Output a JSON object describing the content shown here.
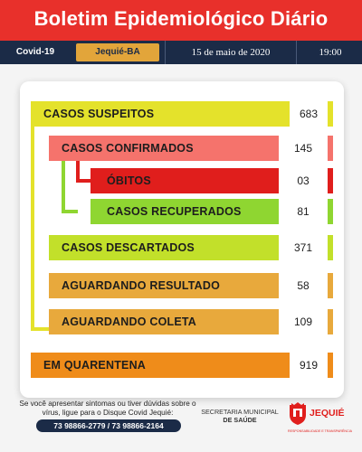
{
  "header": {
    "title": "Boletim Epidemiológico Diário"
  },
  "infobar": {
    "tag": "Covid-19",
    "city": "Jequié-BA",
    "date": "15 de maio de 2020",
    "time": "19:00"
  },
  "rows": [
    {
      "label": "CASOS SUSPEITOS",
      "value": "683",
      "color": "#e4e22b"
    },
    {
      "label": "CASOS CONFIRMADOS",
      "value": "145",
      "color": "#f5736c"
    },
    {
      "label": "ÓBITOS",
      "value": "03",
      "color": "#e01e1c"
    },
    {
      "label": "CASOS RECUPERADOS",
      "value": "81",
      "color": "#8fd631"
    },
    {
      "label": "CASOS DESCARTADOS",
      "value": "371",
      "color": "#c2e02a"
    },
    {
      "label": "AGUARDANDO RESULTADO",
      "value": "58",
      "color": "#e8a93c"
    },
    {
      "label": "AGUARDANDO COLETA",
      "value": "109",
      "color": "#e8a93c"
    },
    {
      "label": "EM QUARENTENA",
      "value": "919",
      "color": "#ef8c1a"
    }
  ],
  "footer": {
    "message": "Se você apresentar sintomas ou tiver dúvidas sobre o vírus, ligue para o Disque Covid Jequié:",
    "phones": "73 98866-2779 / 73 98866-2164",
    "secretaria_line1": "SECRETARIA MUNICIPAL",
    "secretaria_line2": "DE SAÚDE",
    "logo_text": "JEQUIÉ",
    "logo_tagline": "RESPONSABILIDADE E TRANSPARÊNCIA"
  }
}
